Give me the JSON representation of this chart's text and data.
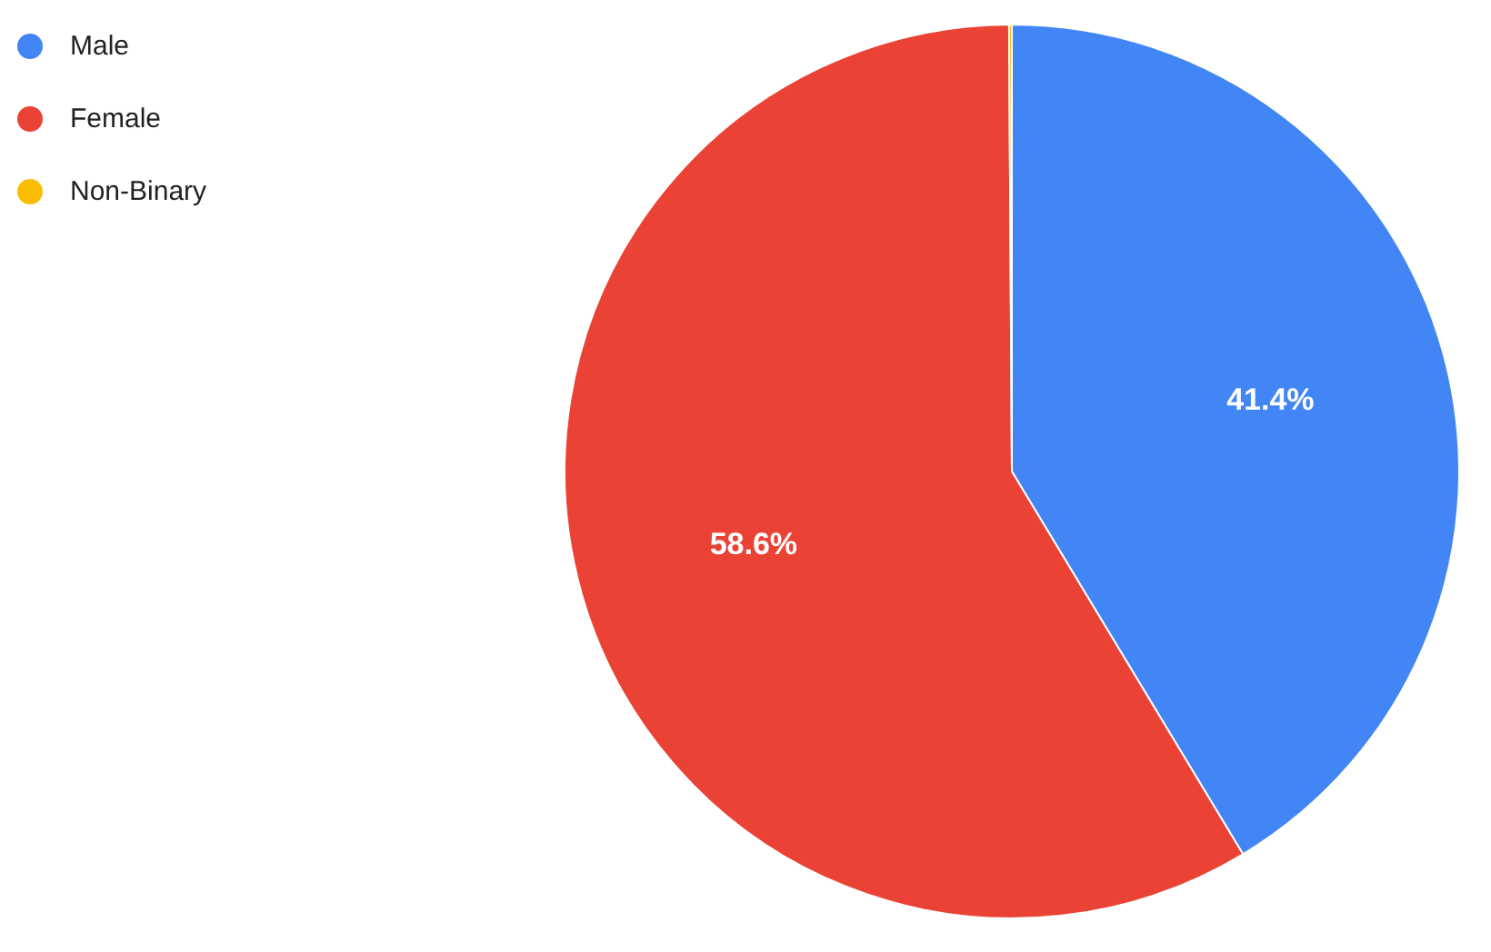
{
  "chart_data": {
    "type": "pie",
    "categories": [
      "Male",
      "Female",
      "Non-Binary"
    ],
    "values": [
      41.4,
      58.6,
      0.1
    ],
    "colors": [
      "#4285f4",
      "#ea4335",
      "#fbbc04"
    ],
    "value_labels": [
      "41.4%",
      "58.6%",
      null
    ],
    "legend": "top left"
  }
}
